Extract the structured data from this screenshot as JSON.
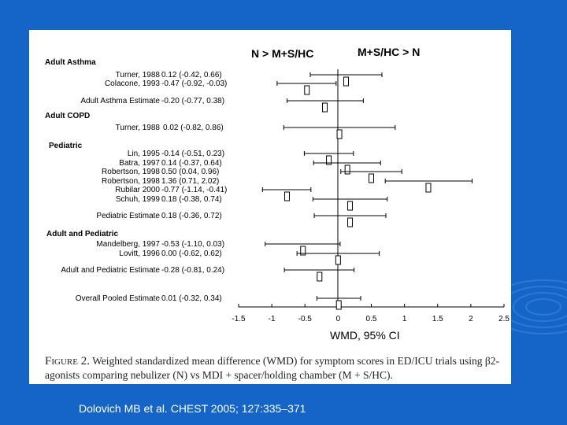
{
  "chart_data": {
    "type": "forest",
    "header_left": "N > M+S/HC",
    "header_right": "M+S/HC > N",
    "xlabel": "WMD, 95% CI",
    "xlim": [
      -1.5,
      2.5
    ],
    "x_ticks": [
      "-1.5",
      "-1",
      "-0.5",
      "0",
      "0.5",
      "1",
      "1.5",
      "2",
      "2.5"
    ],
    "groups": [
      {
        "label": "Adult Asthma"
      },
      {
        "label": "Adult COPD"
      },
      {
        "label": "Pediatric"
      },
      {
        "label": "Adult and Pediatric"
      }
    ],
    "rows": [
      {
        "study": "Turner, 1988",
        "ci": "0.12 (-0.42, 0.66)",
        "est": 0.12,
        "lo": -0.42,
        "hi": 0.66
      },
      {
        "study": "Colacone, 1993",
        "ci": "-0.47 (-0.92, -0.03)",
        "est": -0.47,
        "lo": -0.92,
        "hi": -0.03
      },
      {
        "study": "Adult Asthma Estimate",
        "ci": "-0.20 (-0.77, 0.38)",
        "est": -0.2,
        "lo": -0.77,
        "hi": 0.38
      },
      {
        "study": "Turner, 1988",
        "ci": "0.02 (-0.82, 0.86)",
        "est": 0.02,
        "lo": -0.82,
        "hi": 0.86
      },
      {
        "study": "Lin, 1995",
        "ci": "-0.14 (-0.51, 0.23)",
        "est": -0.14,
        "lo": -0.51,
        "hi": 0.23
      },
      {
        "study": "Batra, 1997",
        "ci": "0.14 (-0.37, 0.64)",
        "est": 0.14,
        "lo": -0.37,
        "hi": 0.64
      },
      {
        "study": "Robertson, 1998",
        "ci": "0.50 (0.04, 0.96)",
        "est": 0.5,
        "lo": 0.04,
        "hi": 0.96
      },
      {
        "study": "Robertson, 1998",
        "ci": "1.36 (0.71, 2.02)",
        "est": 1.36,
        "lo": 0.71,
        "hi": 2.02
      },
      {
        "study": "Rubilar 2000",
        "ci": "-0.77 (-1.14, -0.41)",
        "est": -0.77,
        "lo": -1.14,
        "hi": -0.41
      },
      {
        "study": "Schuh, 1999",
        "ci": "0.18 (-0.38, 0.74)",
        "est": 0.18,
        "lo": -0.38,
        "hi": 0.74
      },
      {
        "study": "Pediatric Estimate",
        "ci": "0.18 (-0.36, 0.72)",
        "est": 0.18,
        "lo": -0.36,
        "hi": 0.72
      },
      {
        "study": "Mandelberg, 1997",
        "ci": "-0.53 (-1.10, 0.03)",
        "est": -0.53,
        "lo": -1.1,
        "hi": 0.03
      },
      {
        "study": "Lovitt, 1996",
        "ci": "0.00 (-0.62, 0.62)",
        "est": 0.0,
        "lo": -0.62,
        "hi": 0.62
      },
      {
        "study": "Adult and Pediatric Estimate",
        "ci": "-0.28 (-0.81, 0.24)",
        "est": -0.28,
        "lo": -0.81,
        "hi": 0.24
      },
      {
        "study": "Overall Pooled Estimate",
        "ci": "0.01 (-0.32, 0.34)",
        "est": 0.01,
        "lo": -0.32,
        "hi": 0.34
      }
    ]
  },
  "caption": {
    "figure_label": "Figure 2.",
    "text": "Weighted standardized mean difference (WMD) for symptom scores in ED/ICU trials using β2-agonists comparing nebulizer (N) vs MDI + spacer/holding chamber (M + S/HC)."
  },
  "citation": "Dolovich MB et al. CHEST 2005; 127:335–371"
}
